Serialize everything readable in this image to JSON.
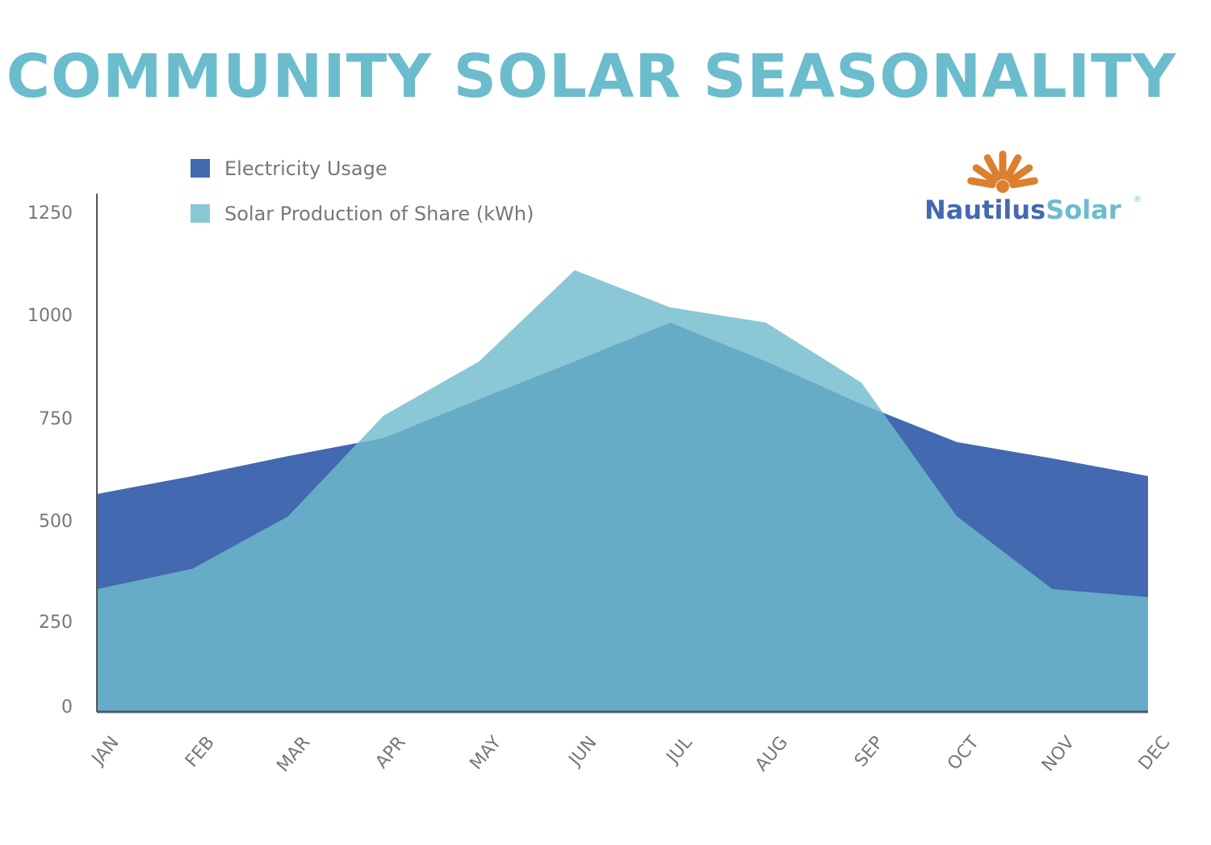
{
  "chart_data": {
    "type": "area",
    "title": "COMMUNITY SOLAR SEASONALITY",
    "xlabel": "",
    "ylabel": "",
    "categories": [
      "JAN",
      "FEB",
      "MAR",
      "APR",
      "MAY",
      "JUN",
      "JUL",
      "AUG",
      "SEP",
      "OCT",
      "NOV",
      "DEC"
    ],
    "ylim": [
      0,
      1250
    ],
    "yticks": [
      0,
      250,
      500,
      750,
      1000,
      1250
    ],
    "grid": false,
    "legend_placement": "top-left",
    "series": [
      {
        "name": "Electricity Usage",
        "color": "#4369b0",
        "values": [
          545,
          590,
          640,
          685,
          782,
          877,
          974,
          877,
          770,
          675,
          634,
          590
        ]
      },
      {
        "name": "Solar Production of Share (kWh)",
        "color": "#70bbcc",
        "values": [
          307,
          358,
          489,
          741,
          877,
          1105,
          1012,
          974,
          824,
          489,
          307,
          287
        ]
      }
    ]
  },
  "logo": {
    "part1": "Nautilus",
    "part2": "Solar",
    "mark": "®",
    "colors": {
      "sun": "#dc7f2e",
      "part1": "#4369b0",
      "part2": "#6bbccd"
    }
  }
}
